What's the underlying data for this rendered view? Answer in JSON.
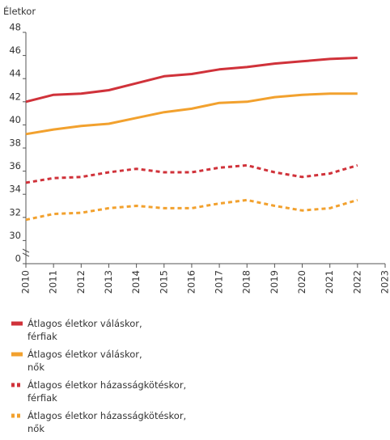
{
  "chart_data": {
    "type": "line",
    "y_axis_label": "Életkor",
    "x": [
      2010,
      2011,
      2012,
      2013,
      2014,
      2015,
      2016,
      2017,
      2018,
      2019,
      2020,
      2021,
      2022
    ],
    "xlim": [
      2010,
      2023
    ],
    "xticks": [
      2010,
      2011,
      2012,
      2013,
      2014,
      2015,
      2016,
      2017,
      2018,
      2019,
      2020,
      2021,
      2022,
      2023
    ],
    "ylim": [
      0,
      48
    ],
    "yticks": [
      0,
      30,
      32,
      34,
      36,
      38,
      40,
      42,
      44,
      46,
      48
    ],
    "series": [
      {
        "name": "Átlagos életkor váláskor,\nférfiak",
        "color": "#d0323a",
        "dashed": false,
        "values": [
          42.0,
          42.6,
          42.7,
          43.0,
          43.6,
          44.2,
          44.4,
          44.8,
          45.0,
          45.3,
          45.5,
          45.7,
          45.8
        ]
      },
      {
        "name": "Átlagos életkor váláskor,\nnők",
        "color": "#f2a12e",
        "dashed": false,
        "values": [
          39.2,
          39.6,
          39.9,
          40.1,
          40.6,
          41.1,
          41.4,
          41.9,
          42.0,
          42.4,
          42.6,
          42.7,
          42.7
        ]
      },
      {
        "name": "Átlagos életkor házasságkötéskor,\nférfiak",
        "color": "#d0323a",
        "dashed": true,
        "values": [
          35.0,
          35.4,
          35.5,
          35.9,
          36.2,
          35.9,
          35.9,
          36.3,
          36.5,
          35.9,
          35.5,
          35.8,
          36.5
        ]
      },
      {
        "name": "Átlagos életkor házasságkötéskor,\nnők",
        "color": "#f2a12e",
        "dashed": true,
        "values": [
          31.8,
          32.3,
          32.4,
          32.8,
          33.0,
          32.8,
          32.8,
          33.2,
          33.5,
          33.0,
          32.6,
          32.8,
          33.5
        ]
      }
    ]
  }
}
